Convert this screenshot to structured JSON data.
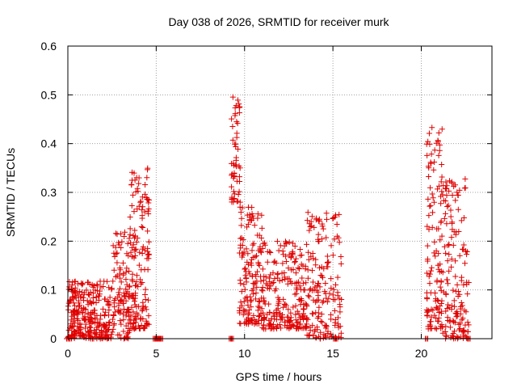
{
  "chart_data": {
    "type": "scatter",
    "title": "Day 038 of 2026, SRMTID for receiver murk",
    "xlabel": "GPS time / hours",
    "ylabel": "SRMTID / TECUs",
    "xlim": [
      0,
      24
    ],
    "ylim": [
      0,
      0.6
    ],
    "xticks": [
      0,
      5,
      10,
      15,
      20
    ],
    "xtick_labels": [
      "0",
      "5",
      "10",
      "15",
      "20"
    ],
    "yticks": [
      0,
      0.1,
      0.2,
      0.3,
      0.4,
      0.5,
      0.6
    ],
    "ytick_labels": [
      "0",
      "0.1",
      "0.2",
      "0.3",
      "0.4",
      "0.5",
      "0.6"
    ],
    "grid": true,
    "marker_style": "plus",
    "color": "#e00000",
    "series": [
      {
        "name": "SRMTID",
        "segments": [
          {
            "start": 0.0,
            "end": 1.0,
            "floor": 0.0,
            "ceiling": 0.12,
            "points": 130
          },
          {
            "start": 1.0,
            "end": 2.5,
            "floor": 0.0,
            "ceiling": 0.12,
            "points": 150
          },
          {
            "start": 2.5,
            "end": 3.5,
            "floor": 0.0,
            "ceiling": 0.22,
            "points": 110
          },
          {
            "start": 3.5,
            "end": 4.6,
            "floor": 0.02,
            "ceiling": 0.35,
            "points": 150
          },
          {
            "start": 9.25,
            "end": 9.75,
            "floor": 0.28,
            "ceiling": 0.5,
            "points": 55
          },
          {
            "start": 9.7,
            "end": 11.0,
            "floor": 0.03,
            "ceiling": 0.27,
            "points": 150
          },
          {
            "start": 11.0,
            "end": 13.5,
            "floor": 0.02,
            "ceiling": 0.2,
            "points": 220
          },
          {
            "start": 13.5,
            "end": 15.5,
            "floor": 0.0,
            "ceiling": 0.26,
            "points": 170
          },
          {
            "start": 20.3,
            "end": 21.2,
            "floor": 0.02,
            "ceiling": 0.44,
            "points": 120
          },
          {
            "start": 21.2,
            "end": 22.7,
            "floor": 0.0,
            "ceiling": 0.33,
            "points": 150
          }
        ],
        "zero_markers": [
          0.0,
          4.9,
          5.0,
          5.1,
          5.2,
          5.3,
          9.2,
          9.3,
          15.1,
          15.2,
          20.3,
          22.7
        ]
      }
    ]
  }
}
